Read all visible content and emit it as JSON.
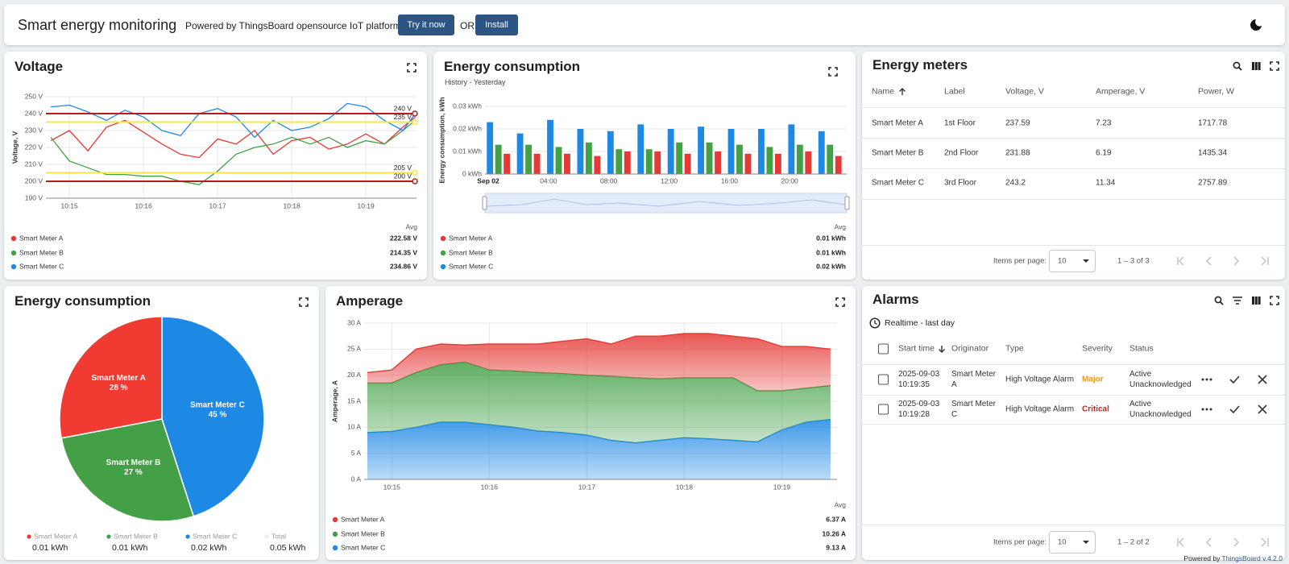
{
  "header": {
    "title": "Smart energy monitoring",
    "powered": "Powered by ThingsBoard opensource IoT platform.",
    "try_button": "Try it now",
    "or": "OR",
    "install_button": "Install"
  },
  "chart_data": [
    {
      "type": "line",
      "title": "Voltage",
      "y_label": "Voltage, V",
      "x": [
        "10:14:45",
        "10:15:00",
        "10:15:15",
        "10:15:30",
        "10:15:45",
        "10:16:00",
        "10:16:15",
        "10:16:30",
        "10:16:45",
        "10:17:00",
        "10:17:15",
        "10:17:30",
        "10:17:45",
        "10:18:00",
        "10:18:15",
        "10:18:30",
        "10:18:45",
        "10:19:00",
        "10:19:15",
        "10:19:30",
        "10:19:40"
      ],
      "xlim": [
        "10:14:41",
        "10:19:41"
      ],
      "xticks": [
        "10:15",
        "10:16",
        "10:17",
        "10:18",
        "10:19"
      ],
      "ylim": [
        190,
        250
      ],
      "yticks": [
        {
          "value": 190,
          "label": "190 V"
        },
        {
          "value": 200,
          "label": "200 V"
        },
        {
          "value": 210,
          "label": "210 V"
        },
        {
          "value": 220,
          "label": "220 V"
        },
        {
          "value": 230,
          "label": "230 V"
        },
        {
          "value": 240,
          "label": "240 V"
        },
        {
          "value": 250,
          "label": "250 V"
        }
      ],
      "grid": true,
      "thresholds": [
        {
          "value": 240,
          "label": "240 V",
          "color": "#b71c1c"
        },
        {
          "value": 235,
          "label": "235 V",
          "color": "#f6e64a"
        },
        {
          "value": 205,
          "label": "205 V",
          "color": "#f6e64a"
        },
        {
          "value": 200,
          "label": "200 V",
          "color": "#b71c1c"
        }
      ],
      "legend_header": "Avg",
      "series": [
        {
          "name": "Smart Meter A",
          "color": "#e53935",
          "avg_label": "222.58 V",
          "values": [
            224,
            230,
            218,
            232,
            236,
            229,
            222,
            216,
            214,
            225,
            222,
            230,
            216,
            224,
            226,
            219,
            222,
            228,
            222,
            232,
            238
          ]
        },
        {
          "name": "Smart Meter B",
          "color": "#43a047",
          "avg_label": "214.35 V",
          "values": [
            226,
            212,
            208,
            204,
            204,
            203,
            203,
            200,
            198,
            206,
            216,
            220,
            222,
            226,
            222,
            226,
            220,
            224,
            222,
            230,
            236
          ]
        },
        {
          "name": "Smart Meter C",
          "color": "#1e88e5",
          "avg_label": "234.86 V",
          "values": [
            244,
            245,
            241,
            236,
            242,
            238,
            230,
            227,
            240,
            243,
            238,
            226,
            236,
            230,
            232,
            237,
            246,
            244,
            236,
            230,
            240
          ]
        }
      ]
    },
    {
      "type": "bar",
      "title": "Energy consumption",
      "subtitle": "History - Yesterday",
      "y_label": "Energy consumption, kWh",
      "categories": [
        "Sep 02",
        null,
        "04:00",
        null,
        "08:00",
        null,
        "12:00",
        null,
        "16:00",
        null,
        "20:00",
        null
      ],
      "ylim": [
        0,
        0.03
      ],
      "yticks": [
        {
          "value": 0,
          "label": "0 kWh"
        },
        {
          "value": 0.01,
          "label": "0.01 kWh"
        },
        {
          "value": 0.02,
          "label": "0.02 kWh"
        },
        {
          "value": 0.03,
          "label": "0.03 kWh"
        }
      ],
      "grid": true,
      "legend_header": "Avg",
      "series": [
        {
          "name": "Smart Meter A",
          "color": "#e53935",
          "avg_label": "0.01 kWh",
          "values": [
            0.009,
            0.009,
            0.009,
            0.008,
            0.01,
            0.01,
            0.009,
            0.01,
            0.009,
            0.009,
            0.01,
            0.008
          ]
        },
        {
          "name": "Smart Meter B",
          "color": "#43a047",
          "avg_label": "0.01 kWh",
          "values": [
            0.013,
            0.013,
            0.012,
            0.014,
            0.011,
            0.011,
            0.014,
            0.014,
            0.013,
            0.012,
            0.013,
            0.013
          ]
        },
        {
          "name": "Smart Meter C",
          "color": "#1e88e5",
          "avg_label": "0.02 kWh",
          "values": [
            0.023,
            0.018,
            0.024,
            0.02,
            0.019,
            0.022,
            0.02,
            0.021,
            0.02,
            0.02,
            0.022,
            0.019
          ]
        }
      ]
    },
    {
      "type": "pie",
      "title": "Energy consumption",
      "categories": [
        "Smart Meter A",
        "Smart Meter B",
        "Smart Meter C"
      ],
      "values": [
        28,
        27,
        45
      ],
      "value_labels": [
        "28 %",
        "27 %",
        "45 %"
      ],
      "colors": [
        "#f03a32",
        "#43a047",
        "#1e88e5"
      ],
      "legend_values": [
        "0.01 kWh",
        "0.01 kWh",
        "0.02 kWh"
      ],
      "total_name": "Total",
      "total_label": "0.05 kWh"
    },
    {
      "type": "area",
      "stacked": true,
      "title": "Amperage",
      "y_label": "Amperage, A",
      "x": [
        "10:14:45",
        "10:15:00",
        "10:15:15",
        "10:15:30",
        "10:15:45",
        "10:16:00",
        "10:16:15",
        "10:16:30",
        "10:16:45",
        "10:17:00",
        "10:17:15",
        "10:17:30",
        "10:17:45",
        "10:18:00",
        "10:18:15",
        "10:18:30",
        "10:18:45",
        "10:19:00",
        "10:19:15",
        "10:19:30"
      ],
      "xlim": [
        "10:14:43",
        "10:19:34"
      ],
      "xticks": [
        "10:15",
        "10:16",
        "10:17",
        "10:18",
        "10:19"
      ],
      "ylim": [
        0,
        30
      ],
      "yticks": [
        {
          "value": 0,
          "label": "0 A"
        },
        {
          "value": 5,
          "label": "5 A"
        },
        {
          "value": 10,
          "label": "10 A"
        },
        {
          "value": 15,
          "label": "15 A"
        },
        {
          "value": 20,
          "label": "20 A"
        },
        {
          "value": 25,
          "label": "25 A"
        },
        {
          "value": 30,
          "label": "30 A"
        }
      ],
      "grid": true,
      "legend_header": "Avg",
      "series": [
        {
          "name": "Smart Meter A",
          "color": "#e53935",
          "avg_label": "6.37 A",
          "values": [
            2,
            2.5,
            4.5,
            4,
            3.3,
            5,
            5.2,
            5.5,
            6.2,
            7,
            6.2,
            8,
            8.2,
            8.5,
            8.5,
            8,
            10,
            8.5,
            8,
            7
          ]
        },
        {
          "name": "Smart Meter B",
          "color": "#43a047",
          "avg_label": "10.26 A",
          "values": [
            9.5,
            9.3,
            10.5,
            11,
            11.5,
            10.5,
            10.8,
            11.2,
            11.3,
            11.5,
            12.3,
            12.5,
            11.8,
            11.5,
            11.7,
            12,
            9.8,
            7.5,
            6.5,
            6.5
          ]
        },
        {
          "name": "Smart Meter C",
          "color": "#1e88e5",
          "avg_label": "9.13 A",
          "values": [
            9,
            9.2,
            10,
            11,
            11,
            10.5,
            10,
            9.3,
            9,
            8.5,
            7.5,
            7,
            7.5,
            8,
            7.8,
            7.5,
            7.2,
            9.5,
            11,
            11.5
          ]
        }
      ]
    }
  ],
  "energy_meters": {
    "title": "Energy meters",
    "columns": [
      "Name",
      "Label",
      "Voltage, V",
      "Amperage, V",
      "Power, W"
    ],
    "rows": [
      [
        "Smart Meter A",
        "1st Floor",
        "237.59",
        "7.23",
        "1717.78"
      ],
      [
        "Smart Meter B",
        "2nd Floor",
        "231.88",
        "6.19",
        "1435.34"
      ],
      [
        "Smart Meter C",
        "3rd Floor",
        "243.2",
        "11.34",
        "2757.89"
      ]
    ],
    "items_per_page_label": "Items per page:",
    "items_per_page": "10",
    "range": "1 – 3 of 3"
  },
  "alarms": {
    "title": "Alarms",
    "timewindow": "Realtime - last day",
    "columns": [
      "Start time",
      "Originator",
      "Type",
      "Severity",
      "Status"
    ],
    "rows": [
      [
        "2025-09-03 10:19:35",
        "Smart Meter A",
        "High Voltage Alarm",
        "Major",
        "Active Unacknowledged"
      ],
      [
        "2025-09-03 10:19:28",
        "Smart Meter C",
        "High Voltage Alarm",
        "Critical",
        "Active Unacknowledged"
      ]
    ],
    "severity_colors": {
      "Major": "#e59a1f",
      "Critical": "#c62828"
    },
    "items_per_page_label": "Items per page:",
    "items_per_page": "10",
    "range": "1 – 2 of 2"
  },
  "footer": {
    "text": "Powered by",
    "link": "ThingsBoard v.4.2.0"
  }
}
